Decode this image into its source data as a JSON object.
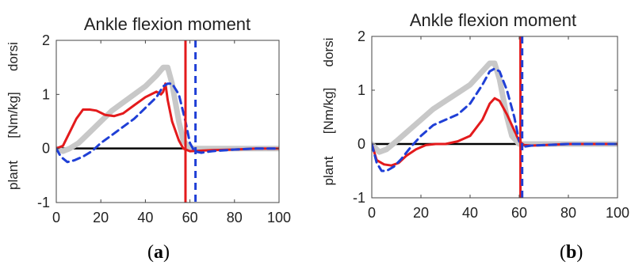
{
  "chart_data": [
    {
      "type": "line",
      "title": "Ankle flexion moment",
      "ylabel_left": "plant",
      "ylabel_mid": "[Nm/kg]",
      "ylabel_right": "dorsi",
      "xlabel": "",
      "xlim": [
        0,
        100
      ],
      "ylim": [
        -1,
        2
      ],
      "xticks": [
        "0",
        "20",
        "40",
        "60",
        "80",
        "100"
      ],
      "yticks": [
        "-1",
        "0",
        "1",
        "2"
      ],
      "grid": false,
      "caption_open": "(",
      "caption_letter": "a",
      "caption_close": ")",
      "series": [
        {
          "color": "#c8c8c8",
          "style": "thick-solid",
          "x": [
            0,
            3,
            6,
            10,
            15,
            20,
            25,
            30,
            35,
            40,
            45,
            48,
            50,
            52,
            55,
            57,
            60,
            70,
            80,
            90,
            100
          ],
          "y": [
            0,
            -0.05,
            0.0,
            0.1,
            0.3,
            0.5,
            0.7,
            0.85,
            1.0,
            1.15,
            1.35,
            1.5,
            1.5,
            1.2,
            0.5,
            0.15,
            0.0,
            0.0,
            0.0,
            0.0,
            0.0
          ]
        },
        {
          "color": "#e31a1c",
          "style": "solid",
          "x": [
            0,
            3,
            6,
            9,
            12,
            15,
            18,
            22,
            26,
            30,
            35,
            40,
            45,
            47,
            48,
            49,
            50,
            52,
            55,
            57,
            60,
            70,
            80,
            90,
            100
          ],
          "y": [
            0,
            0.05,
            0.3,
            0.55,
            0.72,
            0.72,
            0.7,
            0.62,
            0.6,
            0.65,
            0.8,
            0.95,
            1.05,
            1.0,
            1.05,
            1.2,
            0.9,
            0.5,
            0.15,
            0.0,
            -0.05,
            -0.03,
            -0.02,
            0.0,
            0.0
          ]
        },
        {
          "color": "#1f3fd6",
          "style": "dashed",
          "x": [
            0,
            2,
            5,
            8,
            12,
            16,
            20,
            25,
            30,
            35,
            40,
            45,
            48,
            50,
            52,
            55,
            58,
            60,
            62,
            65,
            70,
            80,
            90,
            100
          ],
          "y": [
            0,
            -0.15,
            -0.25,
            -0.22,
            -0.15,
            -0.05,
            0.1,
            0.25,
            0.4,
            0.55,
            0.75,
            0.95,
            1.15,
            1.2,
            1.2,
            1.0,
            0.5,
            0.1,
            -0.05,
            -0.08,
            -0.05,
            -0.02,
            0.0,
            0.0
          ]
        }
      ],
      "vlines": [
        {
          "x": 58,
          "color": "#e31a1c",
          "style": "solid"
        },
        {
          "x": 62.5,
          "color": "#1f3fd6",
          "style": "dashed"
        }
      ]
    },
    {
      "type": "line",
      "title": "Ankle flexion moment",
      "ylabel_left": "plant",
      "ylabel_mid": "[Nm/kg]",
      "ylabel_right": "dorsi",
      "xlabel": "",
      "xlim": [
        0,
        100
      ],
      "ylim": [
        -1,
        2
      ],
      "xticks": [
        "0",
        "20",
        "40",
        "60",
        "80",
        "100"
      ],
      "yticks": [
        "-1",
        "0",
        "1",
        "2"
      ],
      "grid": false,
      "caption_open": "(",
      "caption_letter": "b",
      "caption_close": ")",
      "series": [
        {
          "color": "#c8c8c8",
          "style": "thick-solid",
          "x": [
            0,
            3,
            6,
            10,
            15,
            20,
            25,
            30,
            35,
            40,
            45,
            48,
            50,
            52,
            55,
            57,
            60,
            70,
            80,
            90,
            100
          ],
          "y": [
            0,
            -0.15,
            -0.1,
            0.05,
            0.25,
            0.45,
            0.65,
            0.8,
            0.95,
            1.1,
            1.35,
            1.5,
            1.5,
            1.2,
            0.5,
            0.15,
            0.0,
            0.0,
            0.0,
            0.0,
            0.0
          ]
        },
        {
          "color": "#e31a1c",
          "style": "solid",
          "x": [
            0,
            2,
            5,
            8,
            11,
            14,
            18,
            22,
            26,
            30,
            35,
            40,
            45,
            48,
            50,
            52,
            55,
            58,
            60,
            62,
            65,
            70,
            80,
            90,
            100
          ],
          "y": [
            0,
            -0.3,
            -0.38,
            -0.4,
            -0.35,
            -0.22,
            -0.1,
            -0.02,
            0.0,
            0.0,
            0.05,
            0.15,
            0.45,
            0.75,
            0.85,
            0.8,
            0.55,
            0.25,
            0.05,
            -0.02,
            -0.03,
            -0.02,
            0.0,
            0.0,
            0.0
          ]
        },
        {
          "color": "#1f3fd6",
          "style": "dashed",
          "x": [
            0,
            2,
            4,
            6,
            9,
            12,
            16,
            20,
            25,
            30,
            35,
            40,
            45,
            48,
            50,
            52,
            55,
            58,
            60,
            62,
            65,
            70,
            80,
            90,
            100
          ],
          "y": [
            0,
            -0.35,
            -0.5,
            -0.5,
            -0.42,
            -0.28,
            -0.05,
            0.15,
            0.35,
            0.45,
            0.55,
            0.75,
            1.1,
            1.35,
            1.4,
            1.35,
            1.0,
            0.5,
            0.05,
            -0.05,
            -0.03,
            -0.02,
            0.0,
            0.0,
            0.0
          ]
        }
      ],
      "vlines": [
        {
          "x": 60.5,
          "color": "#e31a1c",
          "style": "solid"
        },
        {
          "x": 61.2,
          "color": "#1f3fd6",
          "style": "dashed"
        }
      ]
    }
  ]
}
